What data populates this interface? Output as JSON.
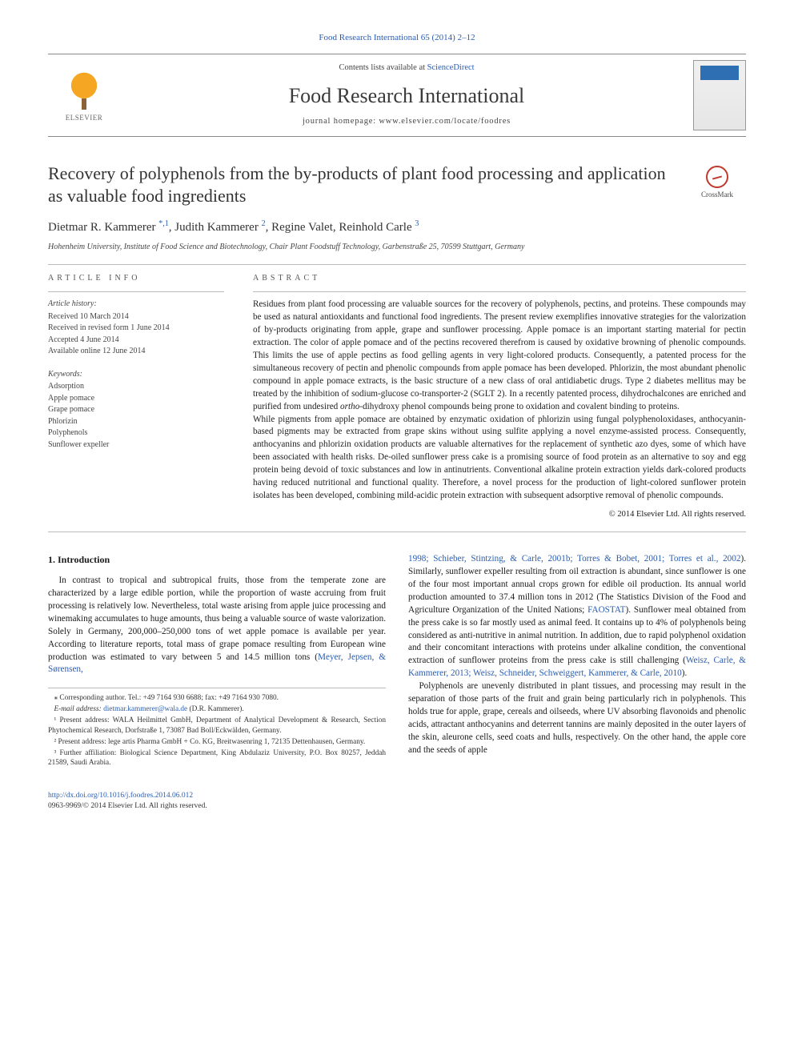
{
  "top_link": "Food Research International 65 (2014) 2–12",
  "header": {
    "contents_prefix": "Contents lists available at ",
    "contents_link": "ScienceDirect",
    "journal": "Food Research International",
    "homepage": "journal homepage: www.elsevier.com/locate/foodres",
    "publisher_name": "ELSEVIER"
  },
  "crossmark_label": "CrossMark",
  "article": {
    "title": "Recovery of polyphenols from the by-products of plant food processing and application as valuable food ingredients",
    "authors_html": "Dietmar R. Kammerer ",
    "author1_mark": "*,1",
    "authors_rest": ", Judith Kammerer ",
    "author2_mark": "2",
    "authors_rest2": ", Regine Valet, Reinhold Carle ",
    "author3_mark": "3",
    "affiliation": "Hohenheim University, Institute of Food Science and Biotechnology, Chair Plant Foodstuff Technology, Garbenstraße 25, 70599 Stuttgart, Germany"
  },
  "meta": {
    "info_head": "article info",
    "abstract_head": "abstract",
    "history_head": "Article history:",
    "history": [
      "Received 10 March 2014",
      "Received in revised form 1 June 2014",
      "Accepted 4 June 2014",
      "Available online 12 June 2014"
    ],
    "keywords_head": "Keywords:",
    "keywords": [
      "Adsorption",
      "Apple pomace",
      "Grape pomace",
      "Phlorizin",
      "Polyphenols",
      "Sunflower expeller"
    ]
  },
  "abstract": {
    "p1": "Residues from plant food processing are valuable sources for the recovery of polyphenols, pectins, and proteins. These compounds may be used as natural antioxidants and functional food ingredients. The present review exemplifies innovative strategies for the valorization of by-products originating from apple, grape and sunflower processing. Apple pomace is an important starting material for pectin extraction. The color of apple pomace and of the pectins recovered therefrom is caused by oxidative browning of phenolic compounds. This limits the use of apple pectins as food gelling agents in very light-colored products. Consequently, a patented process for the simultaneous recovery of pectin and phenolic compounds from apple pomace has been developed. Phlorizin, the most abundant phenolic compound in apple pomace extracts, is the basic structure of a new class of oral antidiabetic drugs. Type 2 diabetes mellitus may be treated by the inhibition of sodium-glucose co-transporter-2 (SGLT 2). In a recently patented process, dihydrochalcones are enriched and purified from undesired ",
    "p1_ital": "ortho",
    "p1_tail": "-dihydroxy phenol compounds being prone to oxidation and covalent binding to proteins.",
    "p2": "While pigments from apple pomace are obtained by enzymatic oxidation of phlorizin using fungal polyphenoloxidases, anthocyanin-based pigments may be extracted from grape skins without using sulfite applying a novel enzyme-assisted process. Consequently, anthocyanins and phlorizin oxidation products are valuable alternatives for the replacement of synthetic azo dyes, some of which have been associated with health risks. De-oiled sunflower press cake is a promising source of food protein as an alternative to soy and egg protein being devoid of toxic substances and low in antinutrients. Conventional alkaline protein extraction yields dark-colored products having reduced nutritional and functional quality. Therefore, a novel process for the production of light-colored sunflower protein isolates has been developed, combining mild-acidic protein extraction with subsequent adsorptive removal of phenolic compounds.",
    "copyright": "© 2014 Elsevier Ltd. All rights reserved."
  },
  "body": {
    "section_heading": "1. Introduction",
    "col1_p1a": "In contrast to tropical and subtropical fruits, those from the temperate zone are characterized by a large edible portion, while the proportion of waste accruing from fruit processing is relatively low. Nevertheless, total waste arising from apple juice processing and winemaking accumulates to huge amounts, thus being a valuable source of waste valorization. Solely in Germany, 200,000–250,000 tons of wet apple pomace is available per year. According to literature reports, total mass of grape pomace resulting from European wine production was estimated to vary between 5 and 14.5 million tons (",
    "col1_ref1": "Meyer, Jepsen, & Sørensen,",
    "col2_ref_cont": "1998; Schieber, Stintzing, & Carle, 2001b; Torres & Bobet, 2001; Torres et al., 2002",
    "col2_p1b": "). Similarly, sunflower expeller resulting from oil extraction is abundant, since sunflower is one of the four most important annual crops grown for edible oil production. Its annual world production amounted to 37.4 million tons in 2012 (The Statistics Division of the Food and Agriculture Organization of the United Nations; ",
    "col2_ref2": "FAOSTAT",
    "col2_p1c": "). Sunflower meal obtained from the press cake is so far mostly used as animal feed. It contains up to 4% of polyphenols being considered as anti-nutritive in animal nutrition. In addition, due to rapid polyphenol oxidation and their concomitant interactions with proteins under alkaline condition, the conventional extraction of sunflower proteins from the press cake is still challenging (",
    "col2_ref3": "Weisz, Carle, & Kammerer, 2013; Weisz, Schneider, Schweiggert, Kammerer, & Carle, 2010",
    "col2_p1d": ").",
    "col2_p2": "Polyphenols are unevenly distributed in plant tissues, and processing may result in the separation of those parts of the fruit and grain being particularly rich in polyphenols. This holds true for apple, grape, cereals and oilseeds, where UV absorbing flavonoids and phenolic acids, attractant anthocyanins and deterrent tannins are mainly deposited in the outer layers of the skin, aleurone cells, seed coats and hulls, respectively. On the other hand, the apple core and the seeds of apple"
  },
  "footnotes": {
    "corr": "⁎  Corresponding author. Tel.: +49 7164 930 6688; fax: +49 7164 930 7080.",
    "email_label": "E-mail address: ",
    "email": "dietmar.kammerer@wala.de",
    "email_tail": " (D.R. Kammerer).",
    "n1": "¹  Present address: WALA Heilmittel GmbH, Department of Analytical Development & Research, Section Phytochemical Research, Dorfstraße 1, 73087 Bad Boll/Eckwälden, Germany.",
    "n2": "²  Present address: lege artis Pharma GmbH + Co. KG, Breitwasenring 1, 72135 Dettenhausen, Germany.",
    "n3": "³  Further affiliation: Biological Science Department, King Abdulaziz University, P.O. Box 80257, Jeddah 21589, Saudi Arabia."
  },
  "footer": {
    "doi": "http://dx.doi.org/10.1016/j.foodres.2014.06.012",
    "issn_line": "0963-9969/© 2014 Elsevier Ltd. All rights reserved."
  },
  "colors": {
    "link": "#2a5db0",
    "text": "#1a1a1a",
    "rule": "#bbbbbb"
  }
}
